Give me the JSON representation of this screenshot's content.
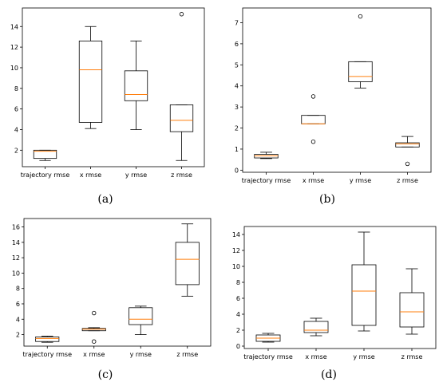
{
  "chart_data": [
    {
      "type": "boxplot",
      "panel": "a",
      "caption": "(a)",
      "categories": [
        "trajectory rmse",
        "x rmse",
        "y rmse",
        "z rmse"
      ],
      "yticks": [
        "2",
        "4",
        "6",
        "8",
        "10",
        "12",
        "14"
      ],
      "ylim": [
        0.4,
        15.8
      ],
      "grid": false,
      "boxes": [
        {
          "whislo": 1.0,
          "q1": 1.2,
          "med": 1.9,
          "q3": 2.0,
          "whishi": 2.0,
          "fliers": []
        },
        {
          "whislo": 4.1,
          "q1": 4.7,
          "med": 9.8,
          "q3": 12.6,
          "whishi": 14.0,
          "fliers": []
        },
        {
          "whislo": 4.0,
          "q1": 6.8,
          "med": 7.4,
          "q3": 9.7,
          "whishi": 12.6,
          "fliers": []
        },
        {
          "whislo": 1.0,
          "q1": 3.8,
          "med": 4.9,
          "q3": 6.4,
          "whishi": 6.4,
          "fliers": [
            15.2
          ]
        }
      ]
    },
    {
      "type": "boxplot",
      "panel": "b",
      "caption": "(b)",
      "categories": [
        "trajectory rmse",
        "x rmse",
        "y rmse",
        "z rmse"
      ],
      "yticks": [
        "0",
        "1",
        "2",
        "3",
        "4",
        "5",
        "6",
        "7"
      ],
      "ylim": [
        -0.1,
        7.7
      ],
      "grid": false,
      "boxes": [
        {
          "whislo": 0.55,
          "q1": 0.58,
          "med": 0.68,
          "q3": 0.75,
          "whishi": 0.85,
          "fliers": []
        },
        {
          "whislo": 2.2,
          "q1": 2.2,
          "med": 2.2,
          "q3": 2.6,
          "whishi": 2.6,
          "fliers": [
            1.35,
            3.5
          ]
        },
        {
          "whislo": 3.9,
          "q1": 4.2,
          "med": 4.45,
          "q3": 5.15,
          "whishi": 5.15,
          "fliers": [
            7.3
          ]
        },
        {
          "whislo": 1.1,
          "q1": 1.1,
          "med": 1.25,
          "q3": 1.3,
          "whishi": 1.6,
          "fliers": [
            0.3
          ]
        }
      ]
    },
    {
      "type": "boxplot",
      "panel": "c",
      "caption": "(c)",
      "categories": [
        "trajectory rmse",
        "x rmse",
        "y rmse",
        "z rmse"
      ],
      "yticks": [
        "2",
        "4",
        "6",
        "8",
        "10",
        "12",
        "14",
        "16"
      ],
      "ylim": [
        0.5,
        17.1
      ],
      "grid": false,
      "boxes": [
        {
          "whislo": 1.0,
          "q1": 1.1,
          "med": 1.5,
          "q3": 1.7,
          "whishi": 1.8,
          "fliers": []
        },
        {
          "whislo": 2.5,
          "q1": 2.5,
          "med": 2.7,
          "q3": 2.8,
          "whishi": 2.9,
          "fliers": [
            1.1,
            4.8
          ]
        },
        {
          "whislo": 2.0,
          "q1": 3.3,
          "med": 4.0,
          "q3": 5.5,
          "whishi": 5.7,
          "fliers": []
        },
        {
          "whislo": 7.0,
          "q1": 8.5,
          "med": 11.8,
          "q3": 14.0,
          "whishi": 16.4,
          "fliers": []
        }
      ]
    },
    {
      "type": "boxplot",
      "panel": "d",
      "caption": "(d)",
      "categories": [
        "trajectory rmse",
        "x rmse",
        "y rmse",
        "z rmse"
      ],
      "yticks": [
        "0",
        "2",
        "4",
        "6",
        "8",
        "10",
        "12",
        "14"
      ],
      "ylim": [
        -0.3,
        15.0
      ],
      "grid": false,
      "boxes": [
        {
          "whislo": 0.5,
          "q1": 0.6,
          "med": 1.0,
          "q3": 1.4,
          "whishi": 1.6,
          "fliers": []
        },
        {
          "whislo": 1.3,
          "q1": 1.7,
          "med": 2.0,
          "q3": 3.1,
          "whishi": 3.5,
          "fliers": []
        },
        {
          "whislo": 1.9,
          "q1": 2.6,
          "med": 6.9,
          "q3": 10.2,
          "whishi": 14.3,
          "fliers": []
        },
        {
          "whislo": 1.5,
          "q1": 2.4,
          "med": 4.3,
          "q3": 6.7,
          "whishi": 9.7,
          "fliers": []
        }
      ]
    }
  ]
}
